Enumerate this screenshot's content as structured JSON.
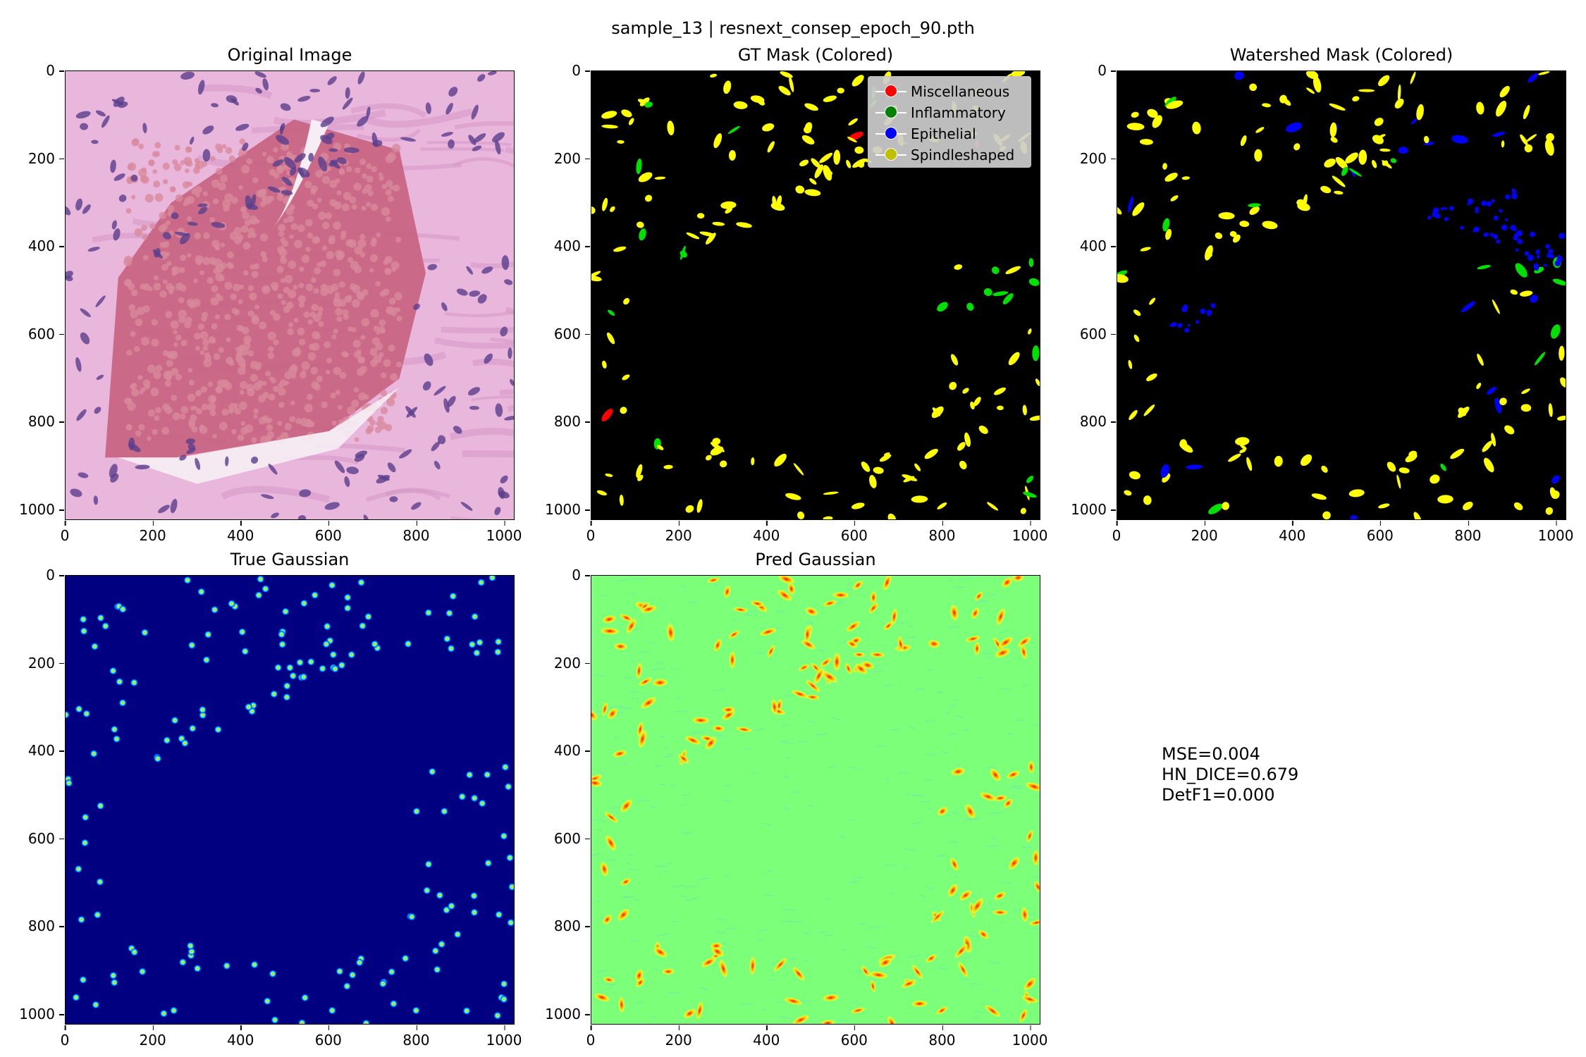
{
  "figure": {
    "suptitle": "sample_13 | resnext_consep_epoch_90.pth"
  },
  "panels": [
    {
      "id": "original",
      "title": "Original Image"
    },
    {
      "id": "gt_mask",
      "title": "GT Mask (Colored)"
    },
    {
      "id": "watershed",
      "title": "Watershed Mask (Colored)"
    },
    {
      "id": "true_gauss",
      "title": "True Gaussian"
    },
    {
      "id": "pred_gauss",
      "title": "Pred Gaussian"
    }
  ],
  "axis_ticks": {
    "x": [
      "0",
      "200",
      "400",
      "600",
      "800",
      "1000"
    ],
    "y": [
      "0",
      "200",
      "400",
      "600",
      "800",
      "1000"
    ]
  },
  "legend": {
    "entries": [
      {
        "label": "Miscellaneous",
        "color": "#ff0000"
      },
      {
        "label": "Inflammatory",
        "color": "#008000"
      },
      {
        "label": "Epithelial",
        "color": "#0000ff"
      },
      {
        "label": "Spindleshaped",
        "color": "#bfbf00"
      }
    ]
  },
  "metrics": {
    "mse": "MSE=0.004",
    "hn_dice": "HN_DICE=0.679",
    "detf1": "DetF1=0.000"
  },
  "colors": {
    "mask_background": "#000000",
    "spindle": "#ffff00",
    "inflammatory": "#00e000",
    "epithelial": "#0000ff",
    "misc": "#ff0000",
    "true_gauss_bg": "#000080",
    "pred_gauss_bg": "#7cff79",
    "tissue_bg": "#e9b6dc",
    "tissue_rbc": "#c8627e",
    "nucleus": "#5a3f8c"
  },
  "chart_data": [
    {
      "type": "heatmap",
      "title": "Original Image",
      "xlim": [
        0,
        1024
      ],
      "ylim": [
        1024,
        0
      ]
    },
    {
      "type": "heatmap",
      "title": "GT Mask (Colored)",
      "xlim": [
        0,
        1024
      ],
      "ylim": [
        1024,
        0
      ],
      "legend": [
        "Miscellaneous",
        "Inflammatory",
        "Epithelial",
        "Spindleshaped"
      ],
      "legend_position": "top-right"
    },
    {
      "type": "heatmap",
      "title": "Watershed Mask (Colored)",
      "xlim": [
        0,
        1024
      ],
      "ylim": [
        1024,
        0
      ]
    },
    {
      "type": "heatmap",
      "title": "True Gaussian",
      "xlim": [
        0,
        1024
      ],
      "ylim": [
        1024,
        0
      ]
    },
    {
      "type": "heatmap",
      "title": "Pred Gaussian",
      "xlim": [
        0,
        1024
      ],
      "ylim": [
        1024,
        0
      ]
    }
  ]
}
